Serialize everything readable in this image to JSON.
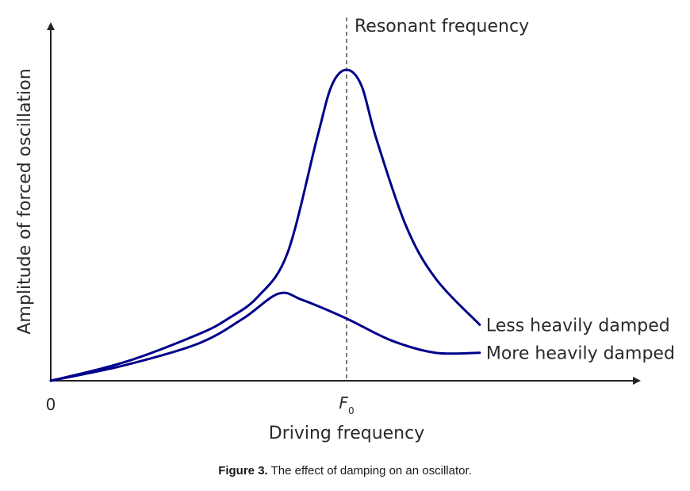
{
  "chart_data": {
    "type": "line",
    "xlabel": "Driving frequency",
    "ylabel": "Amplitude of forced oscillation",
    "x_origin_label": "0",
    "resonance": {
      "label": "Resonant frequency",
      "tick_label": "F",
      "tick_sub": "0",
      "x": 1.0
    },
    "xlim": [
      0,
      2.0
    ],
    "ylim": [
      0,
      1.15
    ],
    "grid": false,
    "line_color": "#00008b",
    "series": [
      {
        "name": "Less heavily damped",
        "points": [
          [
            0,
            0
          ],
          [
            0.25,
            0.06
          ],
          [
            0.5,
            0.15
          ],
          [
            0.6,
            0.2
          ],
          [
            0.7,
            0.27
          ],
          [
            0.8,
            0.41
          ],
          [
            0.9,
            0.78
          ],
          [
            0.95,
            0.95
          ],
          [
            1.0,
            1.0
          ],
          [
            1.05,
            0.95
          ],
          [
            1.1,
            0.78
          ],
          [
            1.2,
            0.5
          ],
          [
            1.3,
            0.33
          ],
          [
            1.45,
            0.18
          ]
        ]
      },
      {
        "name": "More heavily damped",
        "points": [
          [
            0,
            0
          ],
          [
            0.25,
            0.05
          ],
          [
            0.5,
            0.12
          ],
          [
            0.65,
            0.2
          ],
          [
            0.77,
            0.28
          ],
          [
            0.85,
            0.26
          ],
          [
            1.0,
            0.2
          ],
          [
            1.15,
            0.13
          ],
          [
            1.3,
            0.09
          ],
          [
            1.45,
            0.09
          ]
        ]
      }
    ]
  },
  "caption": {
    "label": "Figure 3.",
    "text": " The effect of damping on an oscillator."
  }
}
